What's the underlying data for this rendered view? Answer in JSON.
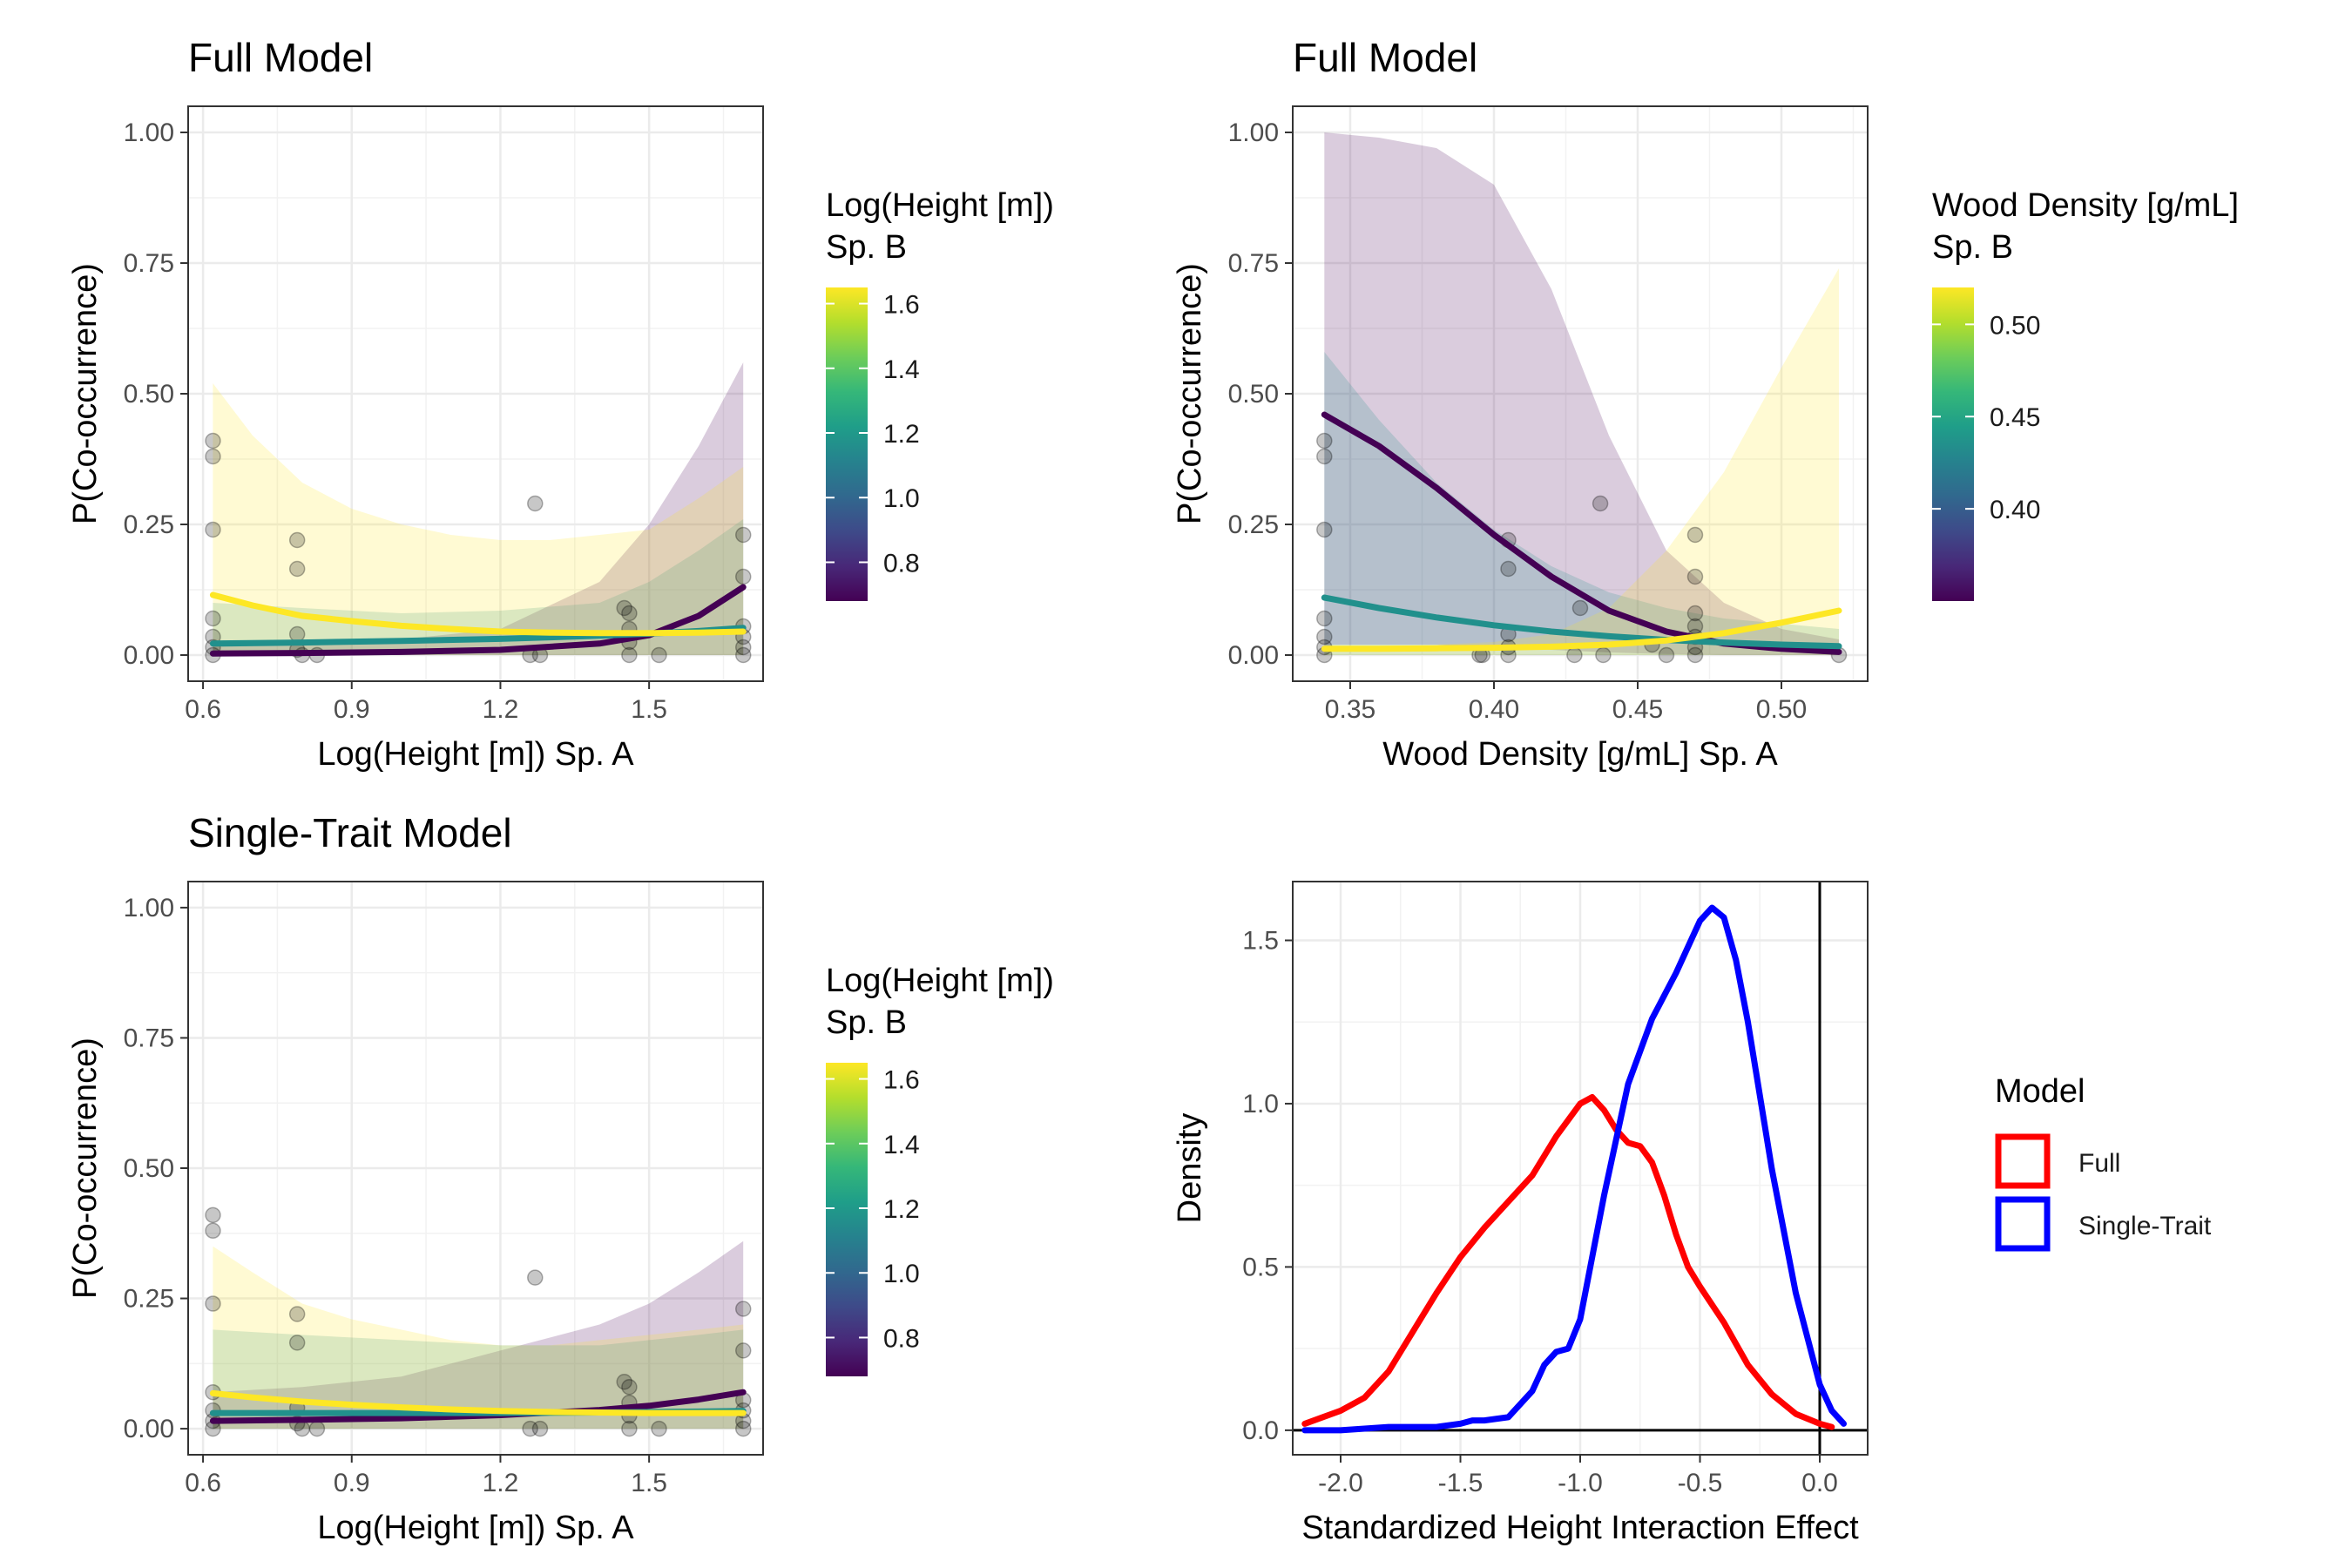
{
  "chart_data": [
    {
      "type": "line",
      "title": "Full Model",
      "xlabel": "Log(Height [m]) Sp. A",
      "ylabel": "P(Co-occurrence)",
      "xlim": [
        0.57,
        1.73
      ],
      "ylim": [
        -0.05,
        1.05
      ],
      "xticks": [
        0.6,
        0.9,
        1.2,
        1.5
      ],
      "xtick_labels": [
        "0.6",
        "0.9",
        "1.2",
        "1.5"
      ],
      "yticks": [
        0,
        0.25,
        0.5,
        0.75,
        1.0
      ],
      "ytick_labels": [
        "0.00",
        "0.25",
        "0.50",
        "0.75",
        "1.00"
      ],
      "grid": true,
      "legend": {
        "title_lines": [
          "Log(Height [m])",
          "Sp. B"
        ],
        "type": "colorbar",
        "range": [
          0.68,
          1.65
        ],
        "ticks": [
          0.8,
          1.0,
          1.2,
          1.4,
          1.6
        ],
        "tick_labels": [
          "0.8",
          "1.0",
          "1.2",
          "1.4",
          "1.6"
        ]
      },
      "series": [
        {
          "color": "#440154",
          "x": [
            0.62,
            0.8,
            1.0,
            1.2,
            1.4,
            1.5,
            1.6,
            1.69
          ],
          "y": [
            0.003,
            0.004,
            0.006,
            0.01,
            0.022,
            0.038,
            0.075,
            0.13
          ],
          "lower": [
            0.0,
            0.0,
            0.0,
            0.0,
            0.0,
            0.0,
            0.0,
            0.0
          ],
          "upper": [
            0.02,
            0.02,
            0.03,
            0.05,
            0.14,
            0.25,
            0.4,
            0.56
          ]
        },
        {
          "color": "#21908C",
          "x": [
            0.62,
            0.8,
            1.0,
            1.2,
            1.4,
            1.5,
            1.6,
            1.69
          ],
          "y": [
            0.022,
            0.024,
            0.027,
            0.031,
            0.037,
            0.041,
            0.046,
            0.052
          ],
          "lower": [
            0.0,
            0.0,
            0.0,
            0.0,
            0.0,
            0.0,
            0.0,
            0.0
          ],
          "upper": [
            0.1,
            0.09,
            0.08,
            0.085,
            0.1,
            0.14,
            0.2,
            0.26
          ]
        },
        {
          "color": "#FDE725",
          "x": [
            0.62,
            0.7,
            0.8,
            0.9,
            1.0,
            1.1,
            1.2,
            1.3,
            1.4,
            1.5,
            1.6,
            1.69
          ],
          "y": [
            0.115,
            0.095,
            0.075,
            0.065,
            0.056,
            0.05,
            0.045,
            0.043,
            0.042,
            0.042,
            0.043,
            0.045
          ],
          "lower": [
            0.0,
            0.0,
            0.0,
            0.0,
            0.0,
            0.0,
            0.0,
            0.0,
            0.0,
            0.0,
            0.0,
            0.0
          ],
          "upper": [
            0.52,
            0.42,
            0.33,
            0.28,
            0.25,
            0.23,
            0.22,
            0.22,
            0.23,
            0.24,
            0.3,
            0.36
          ]
        }
      ],
      "points": [
        {
          "x": 0.62,
          "y": 0.41
        },
        {
          "x": 0.62,
          "y": 0.38
        },
        {
          "x": 0.62,
          "y": 0.24
        },
        {
          "x": 0.62,
          "y": 0.07
        },
        {
          "x": 0.62,
          "y": 0.035
        },
        {
          "x": 0.62,
          "y": 0.015
        },
        {
          "x": 0.62,
          "y": 0.0
        },
        {
          "x": 0.79,
          "y": 0.22
        },
        {
          "x": 0.79,
          "y": 0.165
        },
        {
          "x": 0.79,
          "y": 0.04
        },
        {
          "x": 0.79,
          "y": 0.01
        },
        {
          "x": 0.8,
          "y": 0.0
        },
        {
          "x": 0.83,
          "y": 0.0
        },
        {
          "x": 1.26,
          "y": 0.0
        },
        {
          "x": 1.27,
          "y": 0.29
        },
        {
          "x": 1.28,
          "y": 0.0
        },
        {
          "x": 1.45,
          "y": 0.09
        },
        {
          "x": 1.46,
          "y": 0.08
        },
        {
          "x": 1.46,
          "y": 0.05
        },
        {
          "x": 1.46,
          "y": 0.025
        },
        {
          "x": 1.46,
          "y": 0.0
        },
        {
          "x": 1.52,
          "y": 0.0
        },
        {
          "x": 1.69,
          "y": 0.23
        },
        {
          "x": 1.69,
          "y": 0.15
        },
        {
          "x": 1.69,
          "y": 0.055
        },
        {
          "x": 1.69,
          "y": 0.035
        },
        {
          "x": 1.69,
          "y": 0.015
        },
        {
          "x": 1.69,
          "y": 0.0
        }
      ]
    },
    {
      "type": "line",
      "title": "Full Model",
      "xlabel": "Wood Density [g/mL] Sp. A",
      "ylabel": "P(Co-occurrence)",
      "xlim": [
        0.33,
        0.53
      ],
      "ylim": [
        -0.05,
        1.05
      ],
      "xticks": [
        0.35,
        0.4,
        0.45,
        0.5
      ],
      "xtick_labels": [
        "0.35",
        "0.40",
        "0.45",
        "0.50"
      ],
      "yticks": [
        0,
        0.25,
        0.5,
        0.75,
        1.0
      ],
      "ytick_labels": [
        "0.00",
        "0.25",
        "0.50",
        "0.75",
        "1.00"
      ],
      "grid": true,
      "legend": {
        "title_lines": [
          "Wood Density [g/mL]",
          "Sp. B"
        ],
        "type": "colorbar",
        "range": [
          0.35,
          0.52
        ],
        "ticks": [
          0.4,
          0.45,
          0.5
        ],
        "tick_labels": [
          "0.40",
          "0.45",
          "0.50"
        ]
      },
      "series": [
        {
          "color": "#440154",
          "x": [
            0.341,
            0.36,
            0.38,
            0.4,
            0.42,
            0.44,
            0.46,
            0.48,
            0.5,
            0.52
          ],
          "y": [
            0.46,
            0.4,
            0.32,
            0.23,
            0.15,
            0.085,
            0.045,
            0.022,
            0.012,
            0.006
          ],
          "lower": [
            0.02,
            0.02,
            0.02,
            0.015,
            0.01,
            0.005,
            0.002,
            0.0,
            0.0,
            0.0
          ],
          "upper": [
            1.0,
            0.99,
            0.97,
            0.9,
            0.7,
            0.42,
            0.2,
            0.1,
            0.05,
            0.03
          ]
        },
        {
          "color": "#21908C",
          "x": [
            0.341,
            0.36,
            0.38,
            0.4,
            0.42,
            0.44,
            0.46,
            0.48,
            0.5,
            0.52
          ],
          "y": [
            0.11,
            0.09,
            0.072,
            0.057,
            0.045,
            0.036,
            0.029,
            0.024,
            0.02,
            0.017
          ],
          "lower": [
            0.0,
            0.0,
            0.0,
            0.0,
            0.0,
            0.0,
            0.0,
            0.0,
            0.0,
            0.0
          ],
          "upper": [
            0.58,
            0.45,
            0.33,
            0.24,
            0.17,
            0.12,
            0.09,
            0.07,
            0.06,
            0.05
          ]
        },
        {
          "color": "#FDE725",
          "x": [
            0.341,
            0.36,
            0.38,
            0.4,
            0.42,
            0.44,
            0.46,
            0.48,
            0.5,
            0.52
          ],
          "y": [
            0.012,
            0.012,
            0.013,
            0.014,
            0.016,
            0.02,
            0.028,
            0.042,
            0.062,
            0.085
          ],
          "lower": [
            0.0,
            0.0,
            0.0,
            0.0,
            0.0,
            0.0,
            0.0,
            0.0,
            0.0,
            0.0
          ],
          "upper": [
            0.02,
            0.02,
            0.02,
            0.025,
            0.04,
            0.09,
            0.2,
            0.35,
            0.55,
            0.74
          ]
        }
      ],
      "points": [
        {
          "x": 0.341,
          "y": 0.41
        },
        {
          "x": 0.341,
          "y": 0.38
        },
        {
          "x": 0.341,
          "y": 0.24
        },
        {
          "x": 0.341,
          "y": 0.07
        },
        {
          "x": 0.341,
          "y": 0.035
        },
        {
          "x": 0.341,
          "y": 0.015
        },
        {
          "x": 0.341,
          "y": 0.0
        },
        {
          "x": 0.395,
          "y": 0.0
        },
        {
          "x": 0.396,
          "y": 0.0
        },
        {
          "x": 0.405,
          "y": 0.22
        },
        {
          "x": 0.405,
          "y": 0.165
        },
        {
          "x": 0.405,
          "y": 0.04
        },
        {
          "x": 0.405,
          "y": 0.015
        },
        {
          "x": 0.405,
          "y": 0.0
        },
        {
          "x": 0.428,
          "y": 0.0
        },
        {
          "x": 0.43,
          "y": 0.09
        },
        {
          "x": 0.437,
          "y": 0.29
        },
        {
          "x": 0.438,
          "y": 0.0
        },
        {
          "x": 0.455,
          "y": 0.02
        },
        {
          "x": 0.46,
          "y": 0.0
        },
        {
          "x": 0.47,
          "y": 0.23
        },
        {
          "x": 0.47,
          "y": 0.15
        },
        {
          "x": 0.47,
          "y": 0.08
        },
        {
          "x": 0.47,
          "y": 0.055
        },
        {
          "x": 0.47,
          "y": 0.035
        },
        {
          "x": 0.47,
          "y": 0.015
        },
        {
          "x": 0.47,
          "y": 0.0
        },
        {
          "x": 0.52,
          "y": 0.0
        }
      ]
    },
    {
      "type": "line",
      "title": "Single-Trait Model",
      "xlabel": "Log(Height [m]) Sp. A",
      "ylabel": "P(Co-occurrence)",
      "xlim": [
        0.57,
        1.73
      ],
      "ylim": [
        -0.05,
        1.05
      ],
      "xticks": [
        0.6,
        0.9,
        1.2,
        1.5
      ],
      "xtick_labels": [
        "0.6",
        "0.9",
        "1.2",
        "1.5"
      ],
      "yticks": [
        0,
        0.25,
        0.5,
        0.75,
        1.0
      ],
      "ytick_labels": [
        "0.00",
        "0.25",
        "0.50",
        "0.75",
        "1.00"
      ],
      "grid": true,
      "legend": {
        "title_lines": [
          "Log(Height [m])",
          "Sp. B"
        ],
        "type": "colorbar",
        "range": [
          0.68,
          1.65
        ],
        "ticks": [
          0.8,
          1.0,
          1.2,
          1.4,
          1.6
        ],
        "tick_labels": [
          "0.8",
          "1.0",
          "1.2",
          "1.4",
          "1.6"
        ]
      },
      "series": [
        {
          "color": "#440154",
          "x": [
            0.62,
            0.8,
            1.0,
            1.2,
            1.4,
            1.5,
            1.6,
            1.69
          ],
          "y": [
            0.015,
            0.017,
            0.02,
            0.026,
            0.036,
            0.044,
            0.056,
            0.07
          ],
          "lower": [
            0.0,
            0.0,
            0.0,
            0.0,
            0.0,
            0.0,
            0.0,
            0.0
          ],
          "upper": [
            0.07,
            0.08,
            0.1,
            0.15,
            0.2,
            0.24,
            0.3,
            0.36
          ]
        },
        {
          "color": "#21908C",
          "x": [
            0.62,
            0.8,
            1.0,
            1.2,
            1.4,
            1.5,
            1.6,
            1.69
          ],
          "y": [
            0.03,
            0.03,
            0.03,
            0.03,
            0.031,
            0.032,
            0.033,
            0.034
          ],
          "lower": [
            0.0,
            0.0,
            0.0,
            0.0,
            0.0,
            0.0,
            0.0,
            0.0
          ],
          "upper": [
            0.19,
            0.18,
            0.17,
            0.16,
            0.16,
            0.17,
            0.18,
            0.19
          ]
        },
        {
          "color": "#FDE725",
          "x": [
            0.62,
            0.7,
            0.8,
            0.9,
            1.0,
            1.1,
            1.2,
            1.3,
            1.4,
            1.5,
            1.6,
            1.69
          ],
          "y": [
            0.068,
            0.06,
            0.052,
            0.046,
            0.041,
            0.037,
            0.034,
            0.032,
            0.031,
            0.03,
            0.03,
            0.03
          ],
          "lower": [
            0.0,
            0.0,
            0.0,
            0.0,
            0.0,
            0.0,
            0.0,
            0.0,
            0.0,
            0.0,
            0.0,
            0.0
          ],
          "upper": [
            0.35,
            0.3,
            0.24,
            0.21,
            0.19,
            0.17,
            0.16,
            0.16,
            0.17,
            0.18,
            0.19,
            0.2
          ]
        }
      ],
      "points": [
        {
          "x": 0.62,
          "y": 0.41
        },
        {
          "x": 0.62,
          "y": 0.38
        },
        {
          "x": 0.62,
          "y": 0.24
        },
        {
          "x": 0.62,
          "y": 0.07
        },
        {
          "x": 0.62,
          "y": 0.035
        },
        {
          "x": 0.62,
          "y": 0.015
        },
        {
          "x": 0.62,
          "y": 0.0
        },
        {
          "x": 0.79,
          "y": 0.22
        },
        {
          "x": 0.79,
          "y": 0.165
        },
        {
          "x": 0.79,
          "y": 0.04
        },
        {
          "x": 0.79,
          "y": 0.01
        },
        {
          "x": 0.8,
          "y": 0.0
        },
        {
          "x": 0.83,
          "y": 0.0
        },
        {
          "x": 1.26,
          "y": 0.0
        },
        {
          "x": 1.27,
          "y": 0.29
        },
        {
          "x": 1.28,
          "y": 0.0
        },
        {
          "x": 1.45,
          "y": 0.09
        },
        {
          "x": 1.46,
          "y": 0.08
        },
        {
          "x": 1.46,
          "y": 0.05
        },
        {
          "x": 1.46,
          "y": 0.025
        },
        {
          "x": 1.46,
          "y": 0.0
        },
        {
          "x": 1.52,
          "y": 0.0
        },
        {
          "x": 1.69,
          "y": 0.23
        },
        {
          "x": 1.69,
          "y": 0.15
        },
        {
          "x": 1.69,
          "y": 0.055
        },
        {
          "x": 1.69,
          "y": 0.035
        },
        {
          "x": 1.69,
          "y": 0.015
        },
        {
          "x": 1.69,
          "y": 0.0
        }
      ]
    },
    {
      "type": "line",
      "title": "",
      "xlabel": "Standardized Height Interaction Effect",
      "ylabel": "Density",
      "xlim": [
        -2.2,
        0.2
      ],
      "ylim": [
        -0.075,
        1.68
      ],
      "xticks": [
        -2.0,
        -1.5,
        -1.0,
        -0.5,
        0.0
      ],
      "xtick_labels": [
        "-2.0",
        "-1.5",
        "-1.0",
        "-0.5",
        "0.0"
      ],
      "yticks": [
        0,
        0.5,
        1.0,
        1.5
      ],
      "ytick_labels": [
        "0.0",
        "0.5",
        "1.0",
        "1.5"
      ],
      "grid": true,
      "reference_lines": {
        "x": 0,
        "y": 0
      },
      "legend": {
        "title": "Model",
        "placement": "right"
      },
      "series": [
        {
          "name": "Full",
          "color": "#FF0000",
          "x": [
            -2.15,
            -2.0,
            -1.9,
            -1.8,
            -1.7,
            -1.6,
            -1.5,
            -1.4,
            -1.3,
            -1.2,
            -1.1,
            -1.0,
            -0.95,
            -0.9,
            -0.85,
            -0.8,
            -0.75,
            -0.7,
            -0.65,
            -0.6,
            -0.55,
            -0.5,
            -0.4,
            -0.3,
            -0.2,
            -0.1,
            0.0,
            0.05
          ],
          "y": [
            0.02,
            0.06,
            0.1,
            0.18,
            0.3,
            0.42,
            0.53,
            0.62,
            0.7,
            0.78,
            0.9,
            1.0,
            1.02,
            0.98,
            0.92,
            0.88,
            0.87,
            0.82,
            0.72,
            0.6,
            0.5,
            0.44,
            0.33,
            0.2,
            0.11,
            0.05,
            0.02,
            0.01
          ]
        },
        {
          "name": "Single-Trait",
          "color": "#0000FF",
          "x": [
            -2.15,
            -2.0,
            -1.8,
            -1.6,
            -1.5,
            -1.45,
            -1.4,
            -1.3,
            -1.2,
            -1.15,
            -1.1,
            -1.05,
            -1.0,
            -0.9,
            -0.8,
            -0.7,
            -0.6,
            -0.5,
            -0.45,
            -0.4,
            -0.35,
            -0.3,
            -0.2,
            -0.1,
            0.0,
            0.05,
            0.1
          ],
          "y": [
            0.0,
            0.0,
            0.01,
            0.01,
            0.02,
            0.03,
            0.03,
            0.04,
            0.12,
            0.2,
            0.24,
            0.25,
            0.34,
            0.72,
            1.06,
            1.26,
            1.4,
            1.56,
            1.6,
            1.57,
            1.44,
            1.25,
            0.8,
            0.42,
            0.14,
            0.06,
            0.02
          ]
        }
      ]
    }
  ]
}
